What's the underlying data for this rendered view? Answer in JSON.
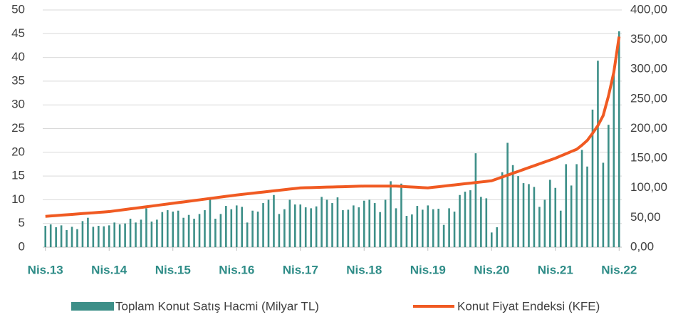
{
  "chart_data": {
    "type": "bar_line",
    "categories": [
      "Nis.13",
      null,
      null,
      null,
      null,
      null,
      null,
      null,
      null,
      null,
      null,
      null,
      "Nis.14",
      null,
      null,
      null,
      null,
      null,
      null,
      null,
      null,
      null,
      null,
      null,
      "Nis.15",
      null,
      null,
      null,
      null,
      null,
      null,
      null,
      null,
      null,
      null,
      null,
      "Nis.16",
      null,
      null,
      null,
      null,
      null,
      null,
      null,
      null,
      null,
      null,
      null,
      "Nis.17",
      null,
      null,
      null,
      null,
      null,
      null,
      null,
      null,
      null,
      null,
      null,
      "Nis.18",
      null,
      null,
      null,
      null,
      null,
      null,
      null,
      null,
      null,
      null,
      null,
      "Nis.19",
      null,
      null,
      null,
      null,
      null,
      null,
      null,
      null,
      null,
      null,
      null,
      "Nis.20",
      null,
      null,
      null,
      null,
      null,
      null,
      null,
      null,
      null,
      null,
      null,
      "Nis.21",
      null,
      null,
      null,
      null,
      null,
      null,
      null,
      null,
      null,
      null,
      null,
      "Nis.22"
    ],
    "series": [
      {
        "name": "Toplam Konut Satış Hacmi (Milyar TL)",
        "type": "bar",
        "color": "#3d8f88",
        "values": [
          4.5,
          4.8,
          4.2,
          4.6,
          3.6,
          4.3,
          3.8,
          5.5,
          6.2,
          4.3,
          4.5,
          4.4,
          4.6,
          5.2,
          4.8,
          5.0,
          6.0,
          5.2,
          5.8,
          8.2,
          5.4,
          5.8,
          7.4,
          7.8,
          7.5,
          7.7,
          6.2,
          6.8,
          6.0,
          7.0,
          7.8,
          10.5,
          6.0,
          7.0,
          8.7,
          8.0,
          8.8,
          8.5,
          5.2,
          7.7,
          7.5,
          9.3,
          10.0,
          11.0,
          7.0,
          8.0,
          10.0,
          9.0,
          9.0,
          8.4,
          8.2,
          8.6,
          10.6,
          10.0,
          9.3,
          10.5,
          7.8,
          7.9,
          8.8,
          8.4,
          9.8,
          10.0,
          9.3,
          7.4,
          10.0,
          13.9,
          8.2,
          13.4,
          6.6,
          6.9,
          8.7,
          7.9,
          8.8,
          8.0,
          8.1,
          4.7,
          8.2,
          7.5,
          11.0,
          11.7,
          12.0,
          19.8,
          10.6,
          10.3,
          3.1,
          4.2,
          15.8,
          22.0,
          17.3,
          15.0,
          13.5,
          13.3,
          12.7,
          8.5,
          10.0,
          14.2,
          12.5,
          7.7,
          17.5,
          13.0,
          17.5,
          20.5,
          17.0,
          29.0,
          39.3,
          17.8,
          25.8,
          36.8,
          45.5
        ]
      },
      {
        "name": "Konut Fiyat Endeksi (KFE)",
        "type": "line",
        "axis": "y2",
        "color": "#f05a22",
        "values": [
          52,
          52.7,
          53.3,
          54,
          54.7,
          55.3,
          56,
          56.7,
          57.3,
          58,
          58.7,
          59.3,
          60,
          61.2,
          62.3,
          63.5,
          64.7,
          65.8,
          67,
          68.2,
          69.3,
          70.5,
          71.7,
          72.8,
          74,
          75.2,
          76.3,
          77.5,
          78.7,
          79.8,
          81,
          82.2,
          83.3,
          84.5,
          85.7,
          86.8,
          88,
          89,
          90,
          91,
          92,
          93,
          94,
          95,
          96,
          97,
          98,
          99,
          100,
          100.3,
          100.5,
          100.8,
          101,
          101.3,
          101.5,
          101.8,
          102,
          102.3,
          102.5,
          102.8,
          103,
          103,
          103,
          103,
          103,
          103,
          103,
          102.5,
          102,
          101.5,
          101,
          100.5,
          100,
          101,
          102,
          103,
          104,
          105,
          106,
          107,
          108,
          109,
          110,
          111,
          112,
          115.2,
          118.3,
          121.5,
          124.7,
          127.8,
          131,
          134.2,
          137.3,
          140.5,
          143.7,
          146.8,
          150,
          153.8,
          157.5,
          161.3,
          165,
          172,
          180,
          192,
          205,
          222,
          255,
          295,
          355
        ]
      }
    ],
    "ylim": [
      0,
      50
    ],
    "yticks": [
      0,
      5,
      10,
      15,
      20,
      25,
      30,
      35,
      40,
      45,
      50
    ],
    "y2lim": [
      0,
      400
    ],
    "y2ticks": [
      {
        "value": 0,
        "label": "0,00"
      },
      {
        "value": 50,
        "label": "50,00"
      },
      {
        "value": 100,
        "label": "100,00"
      },
      {
        "value": 150,
        "label": "150,00"
      },
      {
        "value": 200,
        "label": "200,00"
      },
      {
        "value": 250,
        "label": "250,00"
      },
      {
        "value": 300,
        "label": "300,00"
      },
      {
        "value": 350,
        "label": "350,00"
      },
      {
        "value": 400,
        "label": "400,00"
      }
    ],
    "grid": true,
    "legend": "bottom"
  }
}
